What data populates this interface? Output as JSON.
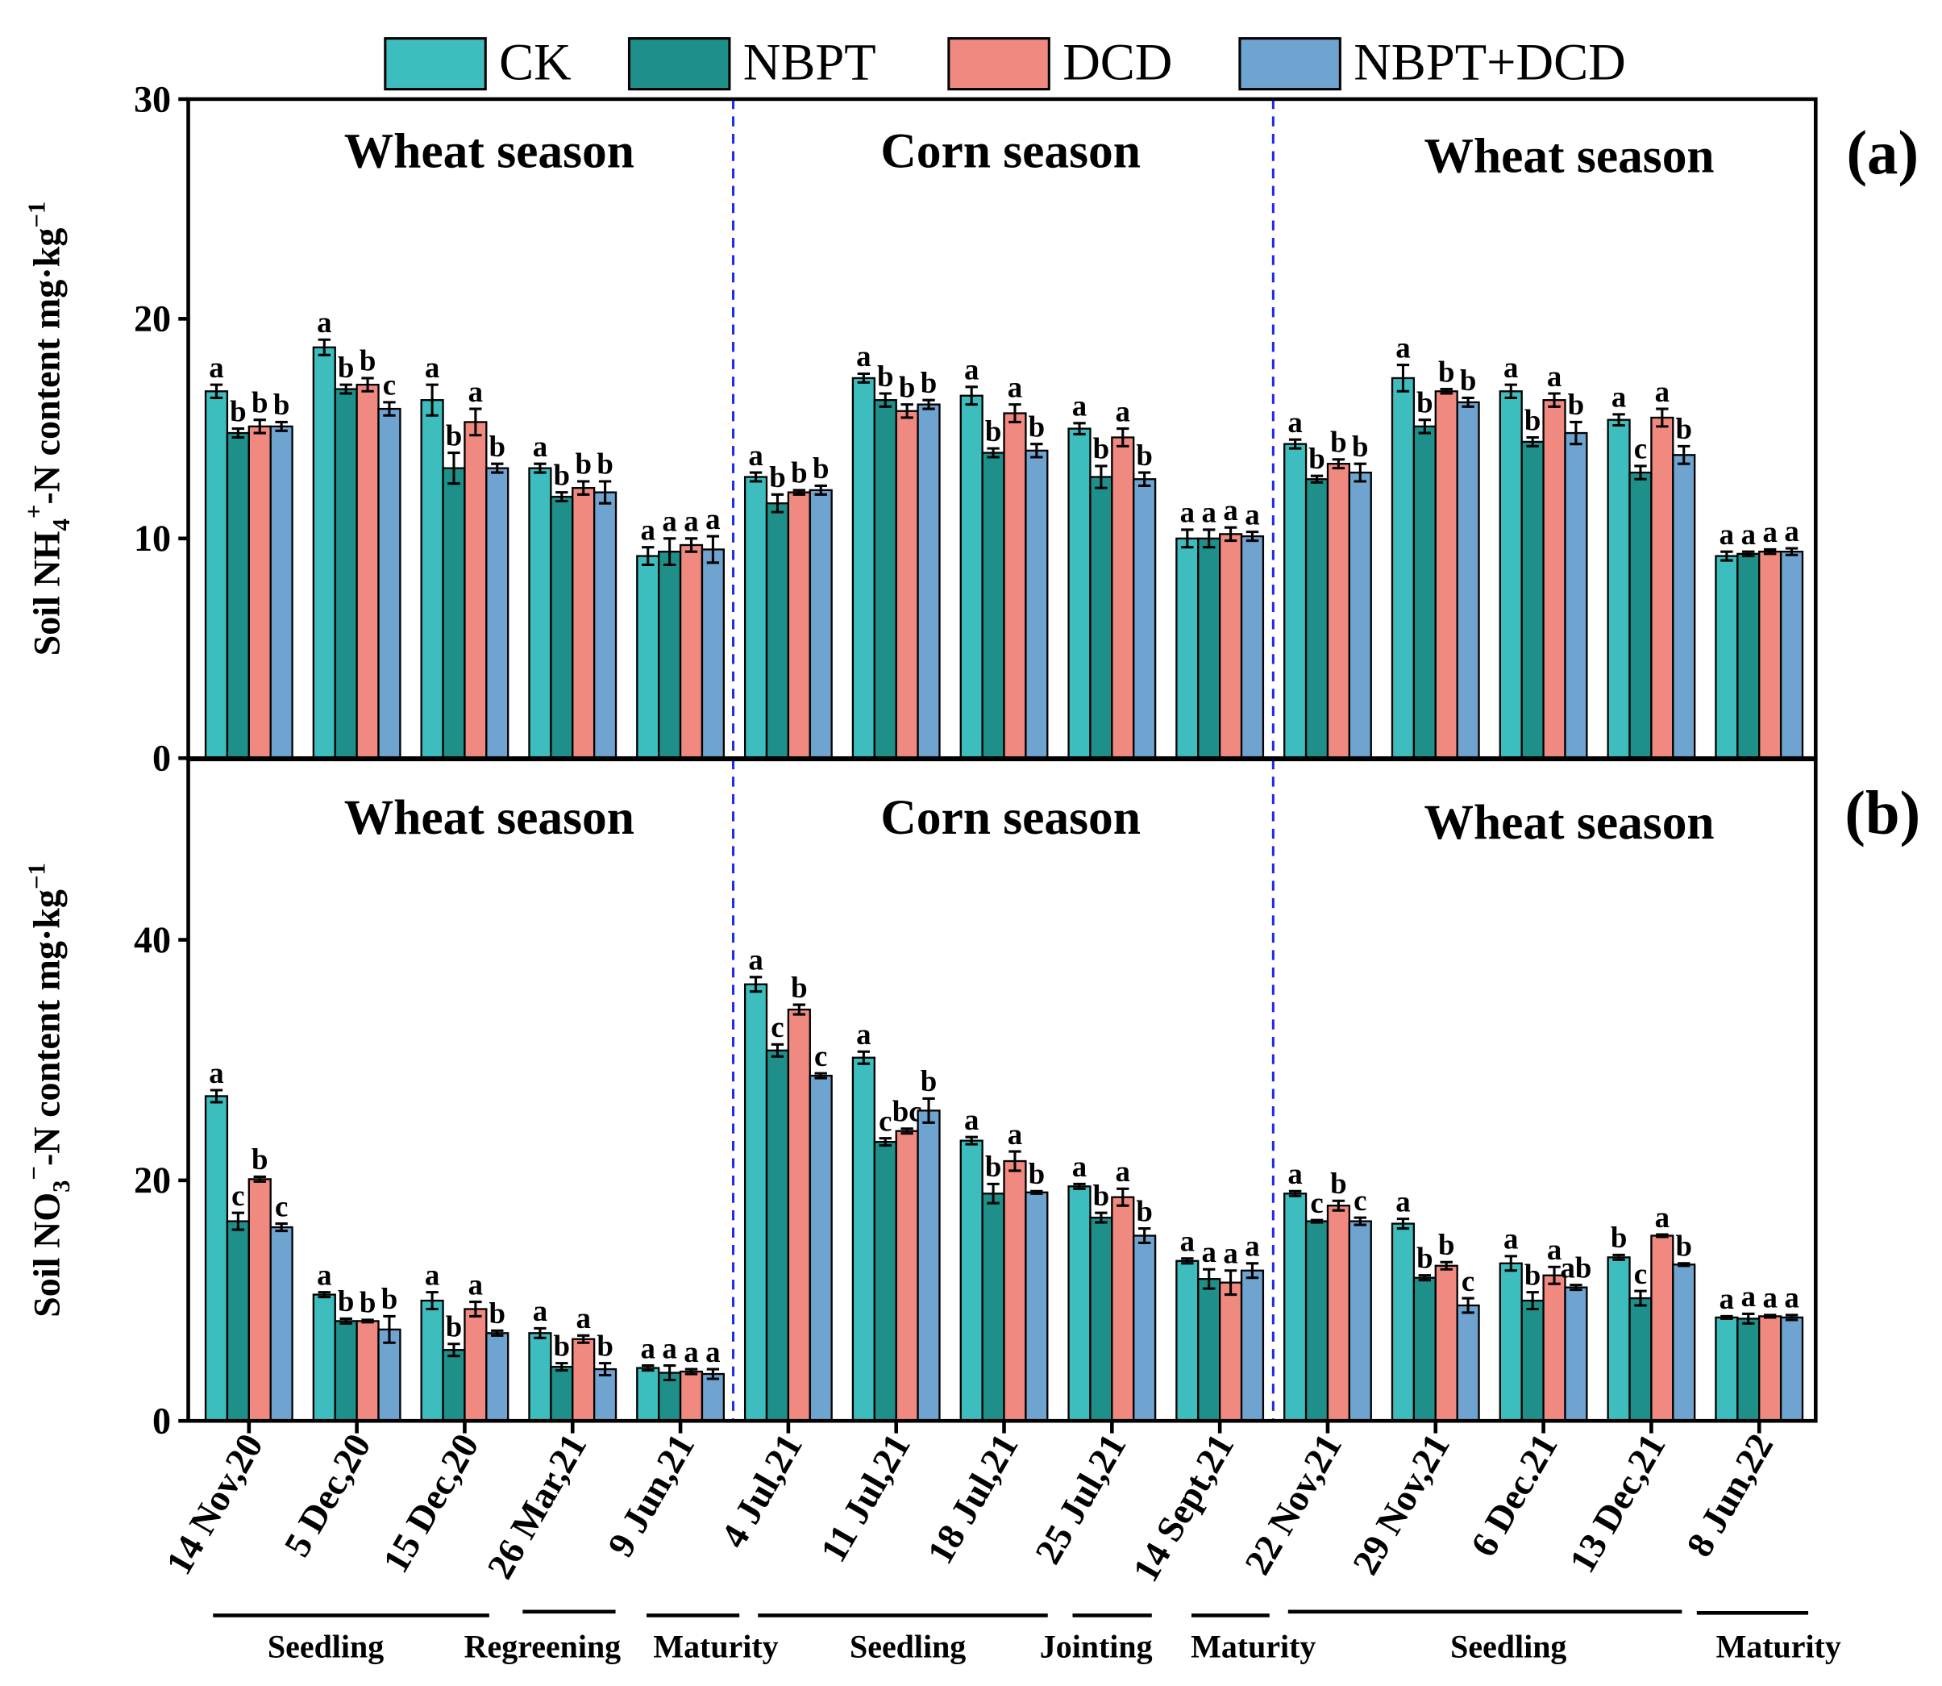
{
  "chart_data": [
    {
      "type": "bar",
      "panel_label": "(a)",
      "ylabel": {
        "pre": "Soil NH",
        "sub": "4",
        "sup": "+",
        "post": "-N content mg·kg",
        "unit_sup": "−1"
      },
      "ylim": [
        0,
        30
      ],
      "yticks": [
        "0",
        "10",
        "20",
        "30"
      ],
      "season_labels": [
        "Wheat season",
        "Corn season",
        "Wheat season"
      ],
      "series": [
        {
          "name": "CK",
          "values": [
            16.7,
            18.7,
            16.3,
            13.2,
            9.2,
            12.8,
            17.3,
            16.5,
            15.0,
            10.0,
            14.3,
            17.3,
            16.7,
            15.4,
            9.2
          ],
          "errors": [
            0.3,
            0.35,
            0.7,
            0.2,
            0.4,
            0.2,
            0.2,
            0.4,
            0.25,
            0.4,
            0.2,
            0.6,
            0.3,
            0.25,
            0.2
          ],
          "letters": [
            "a",
            "a",
            "a",
            "a",
            "a",
            "a",
            "a",
            "a",
            "a",
            "a",
            "a",
            "a",
            "a",
            "a",
            "a"
          ]
        },
        {
          "name": "NBPT",
          "values": [
            14.8,
            16.8,
            13.2,
            11.9,
            9.4,
            11.6,
            16.3,
            13.9,
            12.8,
            10.0,
            12.7,
            15.1,
            14.4,
            13.0,
            9.3
          ],
          "errors": [
            0.2,
            0.2,
            0.7,
            0.2,
            0.6,
            0.4,
            0.3,
            0.2,
            0.5,
            0.4,
            0.15,
            0.3,
            0.2,
            0.3,
            0.1
          ],
          "letters": [
            "b",
            "b",
            "b",
            "b",
            "a",
            "b",
            "b",
            "b",
            "b",
            "a",
            "b",
            "b",
            "b",
            "c",
            "a"
          ]
        },
        {
          "name": "DCD",
          "values": [
            15.1,
            17.0,
            15.3,
            12.3,
            9.7,
            12.1,
            15.8,
            15.7,
            14.6,
            10.2,
            13.4,
            16.7,
            16.3,
            15.5,
            9.4
          ],
          "errors": [
            0.3,
            0.3,
            0.6,
            0.3,
            0.3,
            0.1,
            0.3,
            0.4,
            0.4,
            0.3,
            0.2,
            0.1,
            0.3,
            0.4,
            0.1
          ],
          "letters": [
            "b",
            "b",
            "a",
            "b",
            "a",
            "b",
            "b",
            "a",
            "a",
            "a",
            "b",
            "b",
            "a",
            "a",
            "a"
          ]
        },
        {
          "name": "NBPT+DCD",
          "values": [
            15.1,
            15.9,
            13.2,
            12.1,
            9.5,
            12.2,
            16.1,
            14.0,
            12.7,
            10.1,
            13.0,
            16.2,
            14.8,
            13.8,
            9.4
          ],
          "errors": [
            0.2,
            0.3,
            0.2,
            0.5,
            0.6,
            0.2,
            0.2,
            0.3,
            0.3,
            0.2,
            0.4,
            0.2,
            0.5,
            0.4,
            0.15
          ],
          "letters": [
            "b",
            "c",
            "b",
            "b",
            "a",
            "b",
            "b",
            "b",
            "b",
            "a",
            "b",
            "b",
            "b",
            "b",
            "a"
          ]
        }
      ]
    },
    {
      "type": "bar",
      "panel_label": "(b)",
      "ylabel": {
        "pre": "Soil NO",
        "sub": "3",
        "sup": "−",
        "post": "-N content mg·kg",
        "unit_sup": "−1"
      },
      "ylim": [
        0,
        55
      ],
      "yticks": [
        "0",
        "20",
        "40"
      ],
      "season_labels": [
        "Wheat season",
        "Corn season",
        "Wheat season"
      ],
      "series": [
        {
          "name": "CK",
          "values": [
            27.0,
            10.5,
            10.0,
            7.3,
            4.4,
            36.3,
            30.2,
            23.3,
            19.5,
            13.3,
            18.9,
            16.4,
            13.1,
            13.6,
            8.6
          ],
          "errors": [
            0.5,
            0.2,
            0.7,
            0.4,
            0.2,
            0.6,
            0.5,
            0.3,
            0.2,
            0.2,
            0.2,
            0.4,
            0.6,
            0.2,
            0.1
          ],
          "letters": [
            "a",
            "a",
            "a",
            "a",
            "a",
            "a",
            "a",
            "a",
            "a",
            "a",
            "a",
            "a",
            "a",
            "b",
            "a"
          ]
        },
        {
          "name": "NBPT",
          "values": [
            16.6,
            8.3,
            5.9,
            4.5,
            4.0,
            30.8,
            23.2,
            18.9,
            16.9,
            11.8,
            16.6,
            11.9,
            10.0,
            10.2,
            8.5
          ],
          "errors": [
            0.7,
            0.2,
            0.5,
            0.3,
            0.6,
            0.5,
            0.3,
            0.8,
            0.4,
            0.8,
            0.1,
            0.2,
            0.7,
            0.6,
            0.4
          ],
          "letters": [
            "c",
            "b",
            "b",
            "b",
            "a",
            "c",
            "c",
            "b",
            "b",
            "a",
            "c",
            "b",
            "b",
            "c",
            "a"
          ]
        },
        {
          "name": "DCD",
          "values": [
            20.1,
            8.3,
            9.3,
            6.8,
            4.1,
            34.2,
            24.1,
            21.6,
            18.6,
            11.5,
            17.9,
            12.9,
            12.1,
            15.4,
            8.7
          ],
          "errors": [
            0.2,
            0.1,
            0.6,
            0.3,
            0.2,
            0.4,
            0.2,
            0.8,
            0.7,
            1.0,
            0.4,
            0.3,
            0.7,
            0.1,
            0.1
          ],
          "letters": [
            "b",
            "b",
            "a",
            "a",
            "a",
            "b",
            "bc",
            "a",
            "a",
            "a",
            "b",
            "b",
            "a",
            "a",
            "a"
          ]
        },
        {
          "name": "NBPT+DCD",
          "values": [
            16.1,
            7.6,
            7.3,
            4.3,
            3.9,
            28.7,
            25.8,
            19.0,
            15.4,
            12.5,
            16.6,
            9.6,
            11.1,
            13.0,
            8.6
          ],
          "errors": [
            0.3,
            1.1,
            0.2,
            0.5,
            0.4,
            0.2,
            1.0,
            0.1,
            0.6,
            0.6,
            0.3,
            0.6,
            0.2,
            0.1,
            0.2
          ],
          "letters": [
            "c",
            "b",
            "b",
            "b",
            "a",
            "c",
            "b",
            "b",
            "b",
            "a",
            "c",
            "c",
            "ab",
            "b",
            "a"
          ]
        }
      ]
    }
  ],
  "categories": [
    "14 Nov,20",
    "5 Dec,20",
    "15 Dec,20",
    "26 Mar,21",
    "9 Jun,21",
    "4 Jul,21",
    "11 Jul,21",
    "18 Jul,21",
    "25 Jul,21",
    "14 Sept,21",
    "22 Nov,21",
    "29 Nov,21",
    "6 Dec.21",
    "13 Dec,21",
    "8 Jun,22"
  ],
  "stages": [
    "Seedling",
    "Regreening",
    "Maturity",
    "Seedling",
    "Jointing",
    "Maturity",
    "Seedling",
    "Maturity"
  ],
  "legend": [
    "CK",
    "NBPT",
    "DCD",
    "NBPT+DCD"
  ],
  "legend_placement": "top",
  "colors": {
    "CK": "#3dbdbd",
    "NBPT": "#1f8f8a",
    "DCD": "#f08a80",
    "NBPT+DCD": "#6fa3d0",
    "divider": "#1f2fe0"
  }
}
